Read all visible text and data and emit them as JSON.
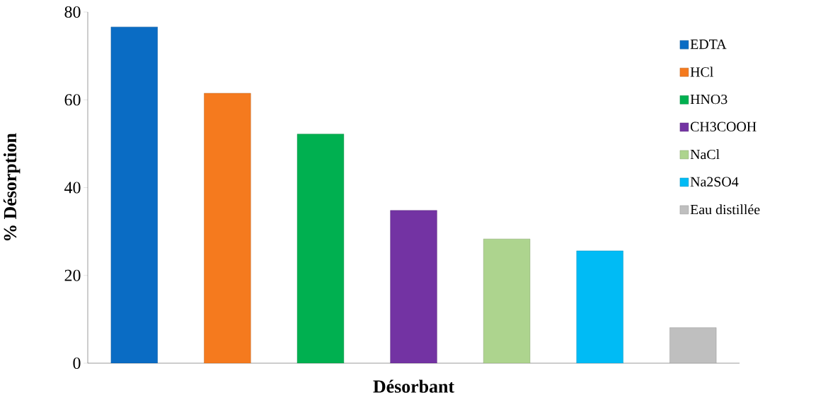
{
  "chart_data": {
    "type": "bar",
    "xlabel": "Désorbant",
    "ylabel": "% Désorption",
    "categories": [
      null,
      null,
      null,
      null,
      null,
      null,
      null
    ],
    "series": [
      {
        "name": "EDTA",
        "color": "#0a6cc4",
        "values": [
          76.6,
          null,
          null,
          null,
          null,
          null,
          null
        ]
      },
      {
        "name": "HCl",
        "color": "#f57a1e",
        "values": [
          null,
          61.5,
          null,
          null,
          null,
          null,
          null
        ]
      },
      {
        "name": "HNO3",
        "color": "#00b050",
        "values": [
          null,
          null,
          52.2,
          null,
          null,
          null,
          null
        ]
      },
      {
        "name": "CH3COOH",
        "color": "#7333a3",
        "values": [
          null,
          null,
          null,
          34.8,
          null,
          null,
          null
        ]
      },
      {
        "name": "NaCl",
        "color": "#add48e",
        "values": [
          null,
          null,
          null,
          null,
          28.3,
          null,
          null
        ]
      },
      {
        "name": "Na2SO4",
        "color": "#00bbf5",
        "values": [
          null,
          null,
          null,
          null,
          null,
          25.6,
          null
        ]
      },
      {
        "name": "Eau distillée",
        "color": "#bfbfbf",
        "values": [
          null,
          null,
          null,
          null,
          null,
          null,
          8.1
        ]
      }
    ],
    "ylim": [
      0,
      80
    ],
    "yticks": [
      0,
      20,
      40,
      60,
      80
    ],
    "grid": false,
    "legend": "right"
  }
}
